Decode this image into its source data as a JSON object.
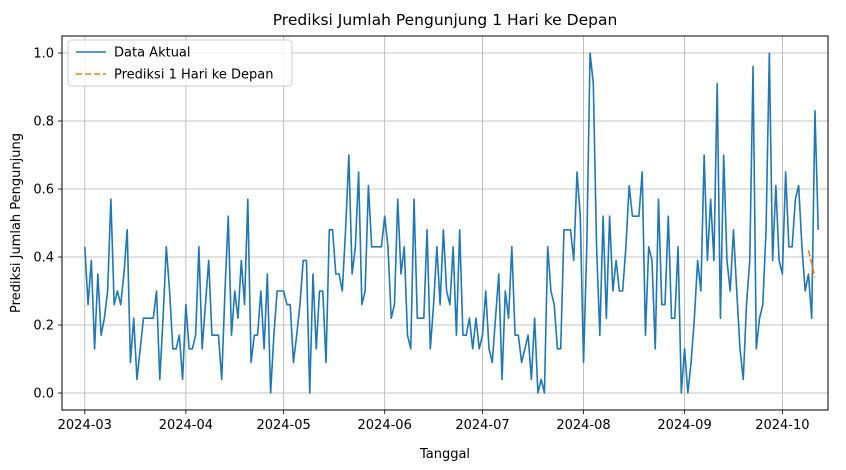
{
  "chart_data": {
    "type": "line",
    "title": "Prediksi Jumlah Pengunjung 1 Hari ke Depan",
    "xlabel": "Tanggal",
    "ylabel": "Prediksi Jumlah Pengunjung",
    "xlim": [
      "2024-02-23",
      "2024-10-15"
    ],
    "ylim": [
      -0.05,
      1.05
    ],
    "grid": true,
    "legend_position": "top-left",
    "x_ticks": [
      "2024-03-01",
      "2024-04-01",
      "2024-05-01",
      "2024-06-01",
      "2024-07-01",
      "2024-08-01",
      "2024-09-01",
      "2024-10-01"
    ],
    "x_tick_labels": [
      "2024-03",
      "2024-04",
      "2024-05",
      "2024-06",
      "2024-07",
      "2024-08",
      "2024-09",
      "2024-10"
    ],
    "y_ticks": [
      0.0,
      0.2,
      0.4,
      0.6,
      0.8,
      1.0
    ],
    "y_tick_labels": [
      "0.0",
      "0.2",
      "0.4",
      "0.6",
      "0.8",
      "1.0"
    ],
    "series": [
      {
        "name": "Data Aktual",
        "color": "#1f77b4",
        "style": "solid",
        "start_date": "2024-03-01",
        "values": [
          0.43,
          0.26,
          0.39,
          0.13,
          0.35,
          0.17,
          0.22,
          0.3,
          0.57,
          0.26,
          0.3,
          0.26,
          0.35,
          0.48,
          0.09,
          0.22,
          0.04,
          0.13,
          0.22,
          0.22,
          0.22,
          0.22,
          0.3,
          0.04,
          0.22,
          0.43,
          0.3,
          0.13,
          0.13,
          0.17,
          0.04,
          0.26,
          0.13,
          0.13,
          0.17,
          0.43,
          0.13,
          0.26,
          0.39,
          0.17,
          0.17,
          0.17,
          0.04,
          0.3,
          0.52,
          0.17,
          0.3,
          0.22,
          0.39,
          0.26,
          0.57,
          0.09,
          0.17,
          0.17,
          0.3,
          0.13,
          0.35,
          0.0,
          0.17,
          0.3,
          0.3,
          0.3,
          0.26,
          0.26,
          0.09,
          0.17,
          0.26,
          0.39,
          0.39,
          0.0,
          0.35,
          0.13,
          0.3,
          0.3,
          0.09,
          0.48,
          0.48,
          0.35,
          0.35,
          0.3,
          0.48,
          0.7,
          0.35,
          0.43,
          0.65,
          0.26,
          0.3,
          0.61,
          0.43,
          0.43,
          0.43,
          0.43,
          0.52,
          0.43,
          0.22,
          0.26,
          0.57,
          0.35,
          0.43,
          0.17,
          0.13,
          0.57,
          0.22,
          0.22,
          0.22,
          0.48,
          0.13,
          0.26,
          0.43,
          0.26,
          0.48,
          0.3,
          0.26,
          0.43,
          0.17,
          0.48,
          0.17,
          0.17,
          0.22,
          0.13,
          0.22,
          0.13,
          0.17,
          0.3,
          0.13,
          0.09,
          0.22,
          0.35,
          0.04,
          0.3,
          0.22,
          0.43,
          0.17,
          0.17,
          0.09,
          0.13,
          0.17,
          0.04,
          0.22,
          0.0,
          0.04,
          0.0,
          0.43,
          0.3,
          0.26,
          0.13,
          0.13,
          0.48,
          0.48,
          0.48,
          0.39,
          0.65,
          0.52,
          0.09,
          0.43,
          1.0,
          0.91,
          0.43,
          0.17,
          0.52,
          0.22,
          0.52,
          0.3,
          0.39,
          0.3,
          0.3,
          0.43,
          0.61,
          0.52,
          0.52,
          0.52,
          0.65,
          0.17,
          0.43,
          0.39,
          0.13,
          0.57,
          0.26,
          0.26,
          0.52,
          0.22,
          0.22,
          0.43,
          0.0,
          0.13,
          0.0,
          0.09,
          0.22,
          0.39,
          0.3,
          0.7,
          0.39,
          0.57,
          0.39,
          0.91,
          0.22,
          0.7,
          0.39,
          0.3,
          0.48,
          0.3,
          0.13,
          0.04,
          0.26,
          0.39,
          0.96,
          0.13,
          0.22,
          0.26,
          0.48,
          1.0,
          0.39,
          0.61,
          0.39,
          0.35,
          0.65,
          0.43,
          0.43,
          0.57,
          0.61,
          0.43,
          0.3,
          0.35,
          0.22,
          0.83,
          0.48
        ]
      },
      {
        "name": "Prediksi 1 Hari ke Depan",
        "color": "#ff7f0e",
        "style": "dashed",
        "start_date": "2024-10-09",
        "values": [
          0.42,
          0.38,
          0.34
        ]
      }
    ]
  }
}
